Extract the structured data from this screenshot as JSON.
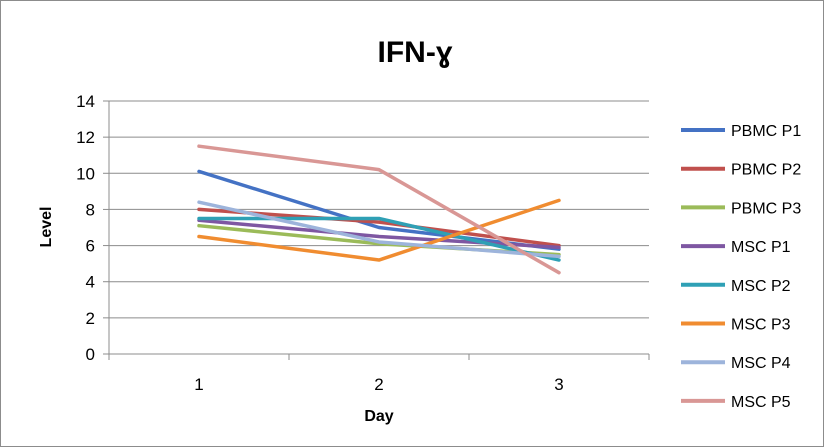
{
  "chart_data": {
    "type": "line",
    "title": "IFN-ɣ",
    "xlabel": "Day",
    "ylabel": "Level",
    "categories": [
      "1",
      "2",
      "3"
    ],
    "ylim": [
      0,
      14
    ],
    "yticks": [
      0,
      2,
      4,
      6,
      8,
      10,
      12,
      14
    ],
    "grid": true,
    "legend": "right",
    "series": [
      {
        "name": "PBMC P1",
        "color": "#4472C4",
        "values": [
          10.1,
          7.0,
          5.8
        ]
      },
      {
        "name": "PBMC P2",
        "color": "#C0504D",
        "values": [
          8.0,
          7.3,
          6.0
        ]
      },
      {
        "name": "PBMC P3",
        "color": "#9BBB59",
        "values": [
          7.1,
          6.1,
          5.5
        ]
      },
      {
        "name": "MSC P1",
        "color": "#7E57A2",
        "values": [
          7.4,
          6.5,
          5.9
        ]
      },
      {
        "name": "MSC P2",
        "color": "#2FA0B5",
        "values": [
          7.5,
          7.5,
          5.2
        ]
      },
      {
        "name": "MSC P3",
        "color": "#F08C30",
        "values": [
          6.5,
          5.2,
          8.5
        ]
      },
      {
        "name": "MSC P4",
        "color": "#9DB4DB",
        "values": [
          8.4,
          6.2,
          5.4
        ]
      },
      {
        "name": "MSC P5",
        "color": "#D99795",
        "values": [
          11.5,
          10.2,
          4.5
        ]
      }
    ]
  }
}
